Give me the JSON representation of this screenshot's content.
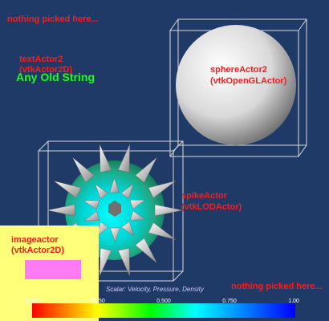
{
  "labels": {
    "nothing_picked_top": "nothing picked here...",
    "text_actor_name": "textActor2",
    "text_actor_class": "(vtkActor2D)",
    "any_old_string": "Any Old String",
    "sphere_actor_name": "sphereActor2",
    "sphere_actor_class": "(vtkOpenGLActor)",
    "spike_actor_name": "spikeActor",
    "spike_actor_class": "(vtkLODActor)",
    "image_actor_name": "imageactor",
    "image_actor_class": "(vtkActor2D)",
    "nothing_picked_bottom": "nothing picked here..."
  },
  "scalar_bar": {
    "title": "Scalar: Velocity, Pressure, Density",
    "ticks": [
      "0.000",
      "0.250",
      "0.500",
      "0.750",
      "1.00"
    ]
  },
  "colors": {
    "background": "#1f3a66",
    "label_red": "#ff1a1a",
    "label_green": "#19ff19",
    "image_actor_bg": "#ffff7a",
    "image_swatch": "#ff7bf5",
    "spike_body": "#1fa882",
    "spike_center": "#00e5e5"
  },
  "icons": {
    "sphere": "sphere-3d-icon",
    "spike_ball": "spike-ball-3d-icon"
  }
}
